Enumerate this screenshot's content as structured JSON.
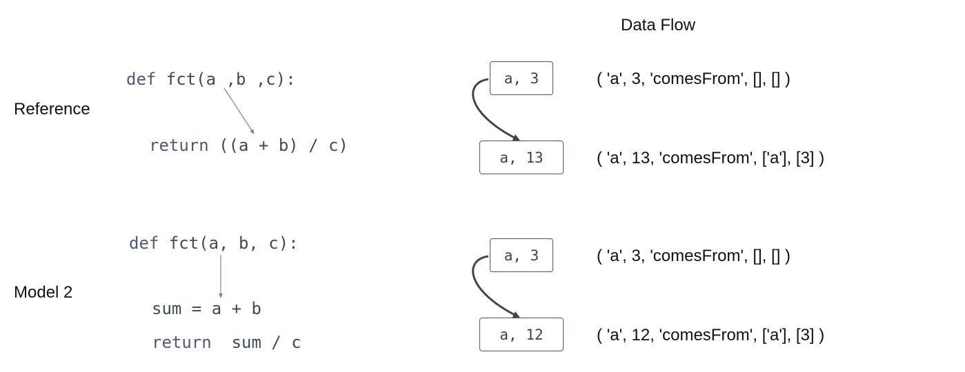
{
  "title": "Data Flow",
  "colors": {
    "text": "#111111",
    "code": "#3f4a5a",
    "node_border": "#4a5568",
    "arrow": "#3d4452",
    "pointer": "#7a8699"
  },
  "sections": [
    {
      "label": "Reference",
      "code": [
        {
          "keyword": "def",
          "rest": " fct(a ,b ,c):"
        },
        {
          "keyword": "return",
          "rest": " ((a + b) / c)"
        }
      ],
      "nodes": [
        {
          "text": "a, 3"
        },
        {
          "text": "a, 13"
        }
      ],
      "tuples": [
        "( 'a', 3, 'comesFrom', [], [] )",
        "( 'a', 13, 'comesFrom', ['a'], [3] )"
      ]
    },
    {
      "label": "Model 2",
      "code": [
        {
          "keyword": "def",
          "rest": " fct(a, b, c):"
        },
        {
          "keyword": "",
          "rest": "sum = a + b"
        },
        {
          "keyword": "return",
          "rest": "  sum / c"
        }
      ],
      "nodes": [
        {
          "text": "a, 3"
        },
        {
          "text": "a, 12"
        }
      ],
      "tuples": [
        "( 'a', 3, 'comesFrom', [], [] )",
        "( 'a', 12, 'comesFrom', ['a'], [3] )"
      ]
    }
  ]
}
